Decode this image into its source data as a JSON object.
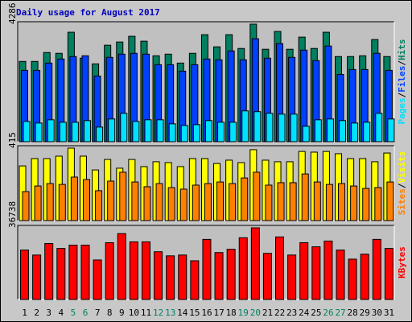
{
  "title": "Daily usage for August 2017",
  "separator": "/",
  "chart_data": [
    {
      "type": "bar",
      "ylim": [
        0,
        4286
      ],
      "yticks": [
        4286
      ],
      "series": [
        {
          "name": "Pages",
          "color": "#00e0ff",
          "values": [
            739,
            680,
            798,
            709,
            709,
            769,
            532,
            828,
            1035,
            739,
            798,
            798,
            650,
            591,
            621,
            769,
            709,
            709,
            1123,
            1094,
            1035,
            1005,
            1005,
            562,
            798,
            828,
            769,
            680,
            709,
            1035,
            828
          ]
        },
        {
          "name": "Files",
          "color": "#0040ff",
          "values": [
            2601,
            2601,
            2867,
            3015,
            3104,
            3133,
            2394,
            3074,
            3192,
            3222,
            3192,
            2808,
            2808,
            2572,
            2808,
            3015,
            2986,
            3311,
            2986,
            3754,
            3045,
            3577,
            3074,
            3340,
            2956,
            3488,
            2453,
            2631,
            2631,
            3222,
            2601
          ]
        },
        {
          "name": "Hits",
          "color": "#008060",
          "values": [
            2927,
            2927,
            3252,
            3222,
            3991,
            3045,
            2838,
            3518,
            3636,
            3843,
            3665,
            3133,
            3192,
            2867,
            3222,
            3902,
            3459,
            3902,
            3399,
            4286,
            3370,
            4020,
            3370,
            3813,
            3399,
            3991,
            3104,
            3104,
            3133,
            3725,
            3104
          ]
        }
      ]
    },
    {
      "type": "bar",
      "ylim": [
        0,
        415
      ],
      "yticks": [
        415
      ],
      "series": [
        {
          "name": "Sites",
          "color": "#ff8000",
          "values": [
            166,
            198,
            212,
            207,
            249,
            235,
            171,
            226,
            277,
            221,
            194,
            212,
            189,
            180,
            203,
            212,
            221,
            212,
            244,
            277,
            203,
            217,
            217,
            267,
            221,
            207,
            212,
            198,
            184,
            189,
            221
          ]
        },
        {
          "name": "Visits",
          "color": "#ffff00",
          "values": [
            313,
            355,
            355,
            369,
            415,
            369,
            290,
            350,
            300,
            350,
            309,
            337,
            332,
            309,
            355,
            355,
            327,
            346,
            332,
            406,
            346,
            337,
            337,
            396,
            392,
            396,
            383,
            355,
            355,
            337,
            387
          ]
        }
      ]
    },
    {
      "type": "bar",
      "ylim": [
        0,
        36738
      ],
      "yticks": [
        36738
      ],
      "categories": [
        "1",
        "2",
        "3",
        "4",
        "5",
        "6",
        "7",
        "8",
        "9",
        "10",
        "11",
        "12",
        "13",
        "14",
        "15",
        "16",
        "17",
        "18",
        "19",
        "20",
        "21",
        "22",
        "23",
        "24",
        "25",
        "26",
        "27",
        "28",
        "29",
        "30",
        "31"
      ],
      "category_colors": [
        "#000000",
        "#000000",
        "#000000",
        "#000000",
        "#008060",
        "#008060",
        "#000000",
        "#000000",
        "#000000",
        "#000000",
        "#000000",
        "#008060",
        "#008060",
        "#000000",
        "#000000",
        "#000000",
        "#000000",
        "#000000",
        "#008060",
        "#008060",
        "#000000",
        "#000000",
        "#000000",
        "#000000",
        "#000000",
        "#008060",
        "#008060",
        "#000000",
        "#000000",
        "#000000",
        "#000000"
      ],
      "series": [
        {
          "name": "KBytes",
          "color": "#ff0000",
          "values": [
            25320,
            22788,
            28696,
            26164,
            27852,
            27852,
            20256,
            29118,
            33760,
            29540,
            29540,
            24476,
            22366,
            22788,
            19834,
            30806,
            24054,
            25742,
            31650,
            36738,
            23632,
            32072,
            22788,
            29118,
            27008,
            29962,
            25320,
            20678,
            23210,
            30806,
            26164
          ]
        }
      ]
    }
  ]
}
